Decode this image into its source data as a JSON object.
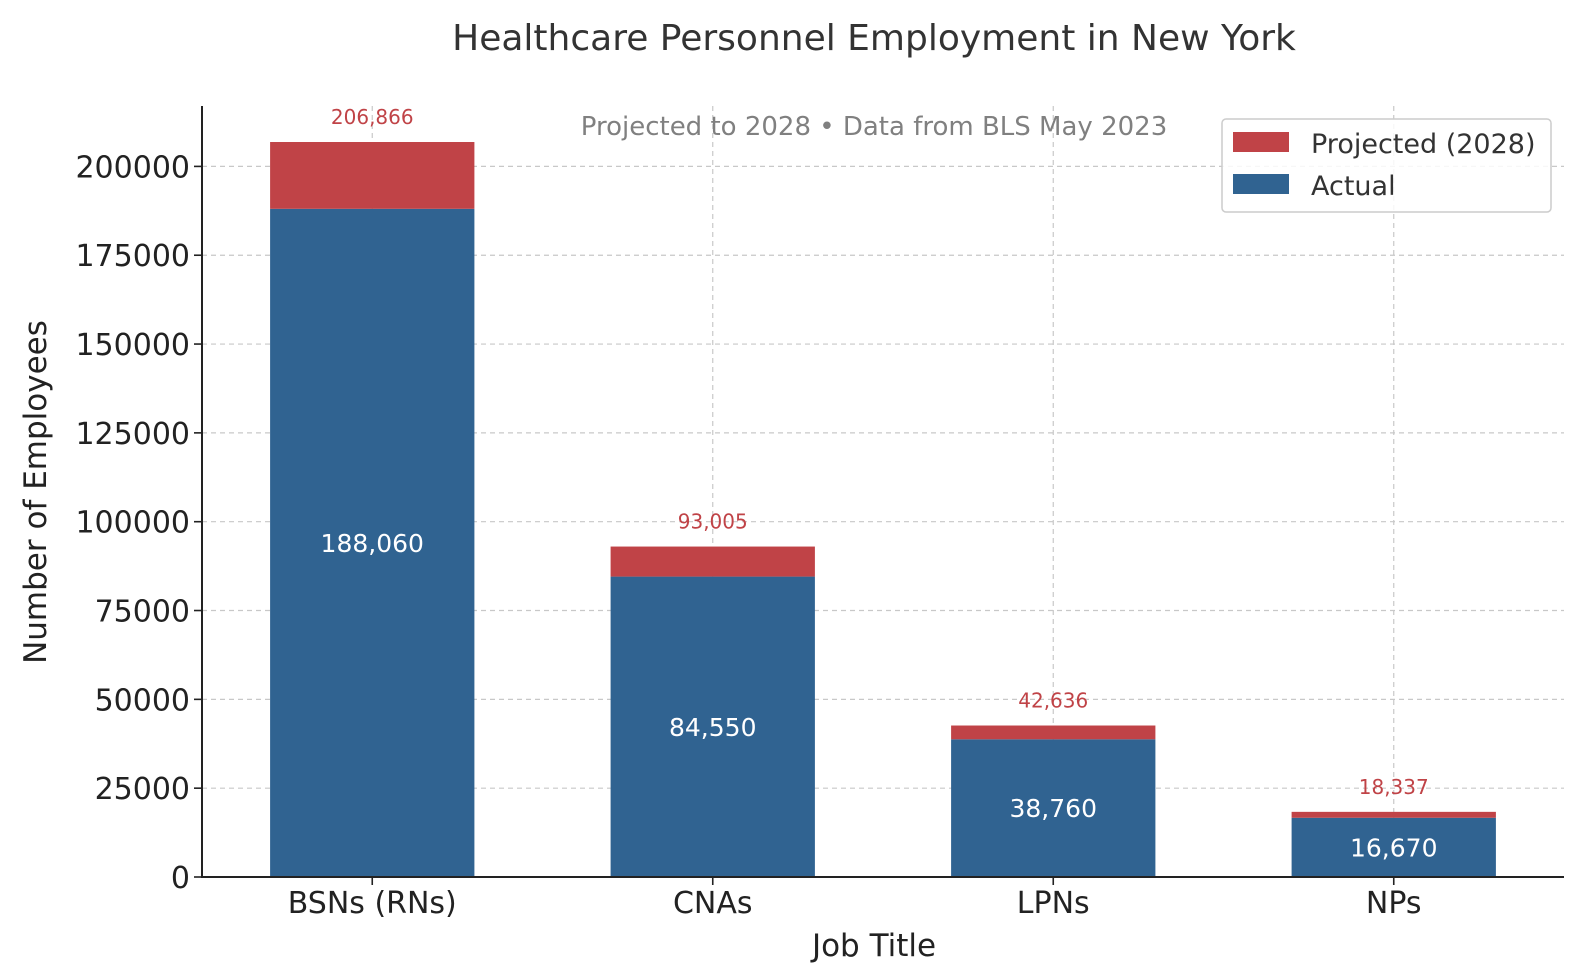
{
  "chart_data": {
    "type": "bar",
    "stacked": true,
    "title": "Healthcare Personnel Employment in New York",
    "subtitle": "Projected to 2028 • Data from BLS May 2023",
    "xlabel": "Job Title",
    "ylabel": "Number of Employees",
    "categories": [
      "BSNs (RNs)",
      "CNAs",
      "LPNs",
      "NPs"
    ],
    "series": [
      {
        "name": "Actual",
        "values": [
          188060,
          84550,
          38760,
          16670
        ],
        "color": "#306391"
      },
      {
        "name": "Projected (2028)",
        "values": [
          18806,
          8455,
          3876,
          1667
        ],
        "color": "#c04347"
      }
    ],
    "totals": [
      206866,
      93005,
      42636,
      18337
    ],
    "total_labels": [
      "206,866",
      "93,005",
      "42,636",
      "18,337"
    ],
    "actual_labels": [
      "188,060",
      "84,550",
      "38,760",
      "16,670"
    ],
    "ylim": [
      0,
      217000
    ],
    "yticks": [
      0,
      25000,
      50000,
      75000,
      100000,
      125000,
      150000,
      175000,
      200000
    ],
    "ytick_labels": [
      "0",
      "25000",
      "50000",
      "75000",
      "100000",
      "125000",
      "150000",
      "175000",
      "200000"
    ],
    "grid": true,
    "legend_position": "top-right"
  }
}
